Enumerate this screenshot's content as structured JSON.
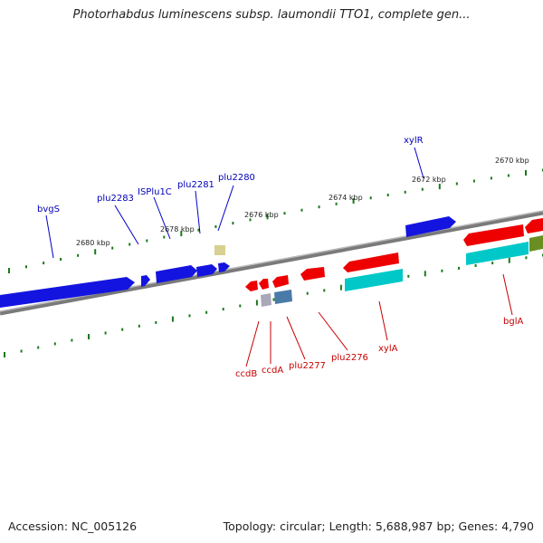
{
  "title": "Photorhabdus luminescens subsp. laumondii TTO1, complete gen...",
  "footer": {
    "accession": "Accession: NC_005126",
    "summary": "Topology: circular; Length: 5,688,987 bp; Genes: 4,790"
  },
  "colors": {
    "forward_gene": "#1414e0",
    "reverse_gene": "#ee0000",
    "cds_teal": "#00c8c8",
    "cds_olive": "#6b8e23",
    "backbone": "#8c8c8c",
    "tick": "#1a7a1a"
  },
  "kbp_labels": [
    "2680 kbp",
    "2678 kbp",
    "2676 kbp",
    "2674 kbp",
    "2672 kbp",
    "2670 kbp"
  ],
  "forward_labels": [
    "bvgS",
    "plu2283",
    "ISPlu1C",
    "plu2281",
    "plu2280",
    "xylR"
  ],
  "reverse_labels": [
    "ccdB",
    "ccdA",
    "plu2277",
    "plu2276",
    "xylA",
    "bglA"
  ]
}
